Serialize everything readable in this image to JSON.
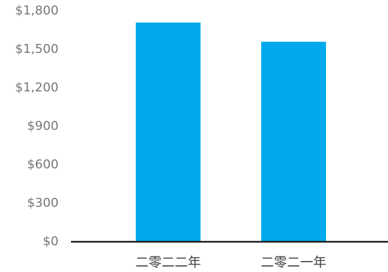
{
  "chart_data": {
    "type": "bar",
    "categories": [
      "二零二二年",
      "二零二一年"
    ],
    "values": [
      1710,
      1560
    ],
    "ylim": [
      0,
      1800
    ],
    "y_ticks": [
      0,
      300,
      600,
      900,
      1200,
      1500,
      1800
    ],
    "y_tick_labels": [
      "$0",
      "$300",
      "$600",
      "$900",
      "$1,200",
      "$1,500",
      "$1,800"
    ],
    "title": "",
    "xlabel": "",
    "ylabel": "",
    "grid": false,
    "legend": "none",
    "bar_color": "#00A9EC",
    "axis_color": "#1F1F1F",
    "tick_label_color": "#767676",
    "category_label_color": "#404040"
  }
}
